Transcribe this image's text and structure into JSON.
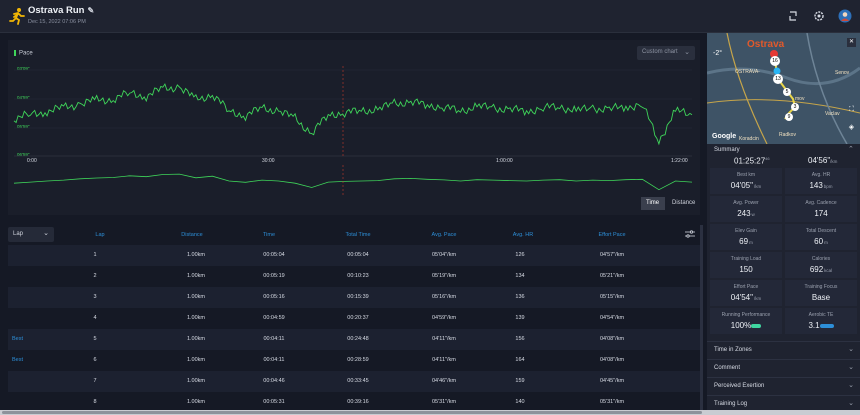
{
  "header": {
    "title": "Ostrava Run",
    "date": "Dec 15, 2022 07:06 PM"
  },
  "chart": {
    "legend": "Pace",
    "custom_chart_label": "Custom chart",
    "y_ticks": [
      "03'09\"",
      "04'59\"",
      "05'59\"",
      "06'59\""
    ],
    "x_ticks": [
      "0:00",
      "30:00",
      "1:00:00",
      "1:22:00"
    ],
    "toggle_time": "Time",
    "toggle_distance": "Distance",
    "line_color": "#3fd65a"
  },
  "chart_data": {
    "type": "line",
    "title": "",
    "legend": "Pace",
    "x_ticks": [
      "0:00",
      "30:00",
      "1:00:00",
      "1:22:00"
    ],
    "y_ticks": [
      "03'09\"",
      "04'59\"",
      "05'59\"",
      "06'59\""
    ],
    "series": [
      {
        "name": "Pace",
        "x_minutes": [
          0,
          2,
          4,
          6,
          8,
          10,
          12,
          14,
          16,
          18,
          20,
          22,
          24,
          26,
          28,
          30,
          32,
          34,
          36,
          38,
          40,
          42,
          44,
          46,
          48,
          50,
          52,
          54,
          56,
          58,
          60,
          62,
          64,
          66,
          68,
          70,
          72,
          74,
          76,
          78,
          80,
          82
        ],
        "pace_sec_per_km": [
          310,
          305,
          300,
          296,
          290,
          286,
          284,
          276,
          280,
          270,
          268,
          285,
          278,
          300,
          306,
          296,
          300,
          310,
          330,
          305,
          302,
          300,
          298,
          290,
          288,
          292,
          295,
          300,
          294,
          296,
          298,
          300,
          296,
          294,
          300,
          296,
          298,
          294,
          292,
          340,
          300,
          305
        ]
      }
    ]
  },
  "table": {
    "lap_select": "Lap",
    "headers": [
      "Lap",
      "Distance",
      "Time",
      "Total Time",
      "Avg. Pace",
      "Avg. HR",
      "Effort Pace"
    ],
    "rows": [
      {
        "tag": "",
        "lap": "1",
        "distance": "1.00km",
        "time": "00:05:04",
        "total": "00:05:04",
        "pace": "05'04\"/km",
        "hr": "126",
        "effort": "04'57\"/km"
      },
      {
        "tag": "",
        "lap": "2",
        "distance": "1.00km",
        "time": "00:05:19",
        "total": "00:10:23",
        "pace": "05'19\"/km",
        "hr": "134",
        "effort": "05'21\"/km"
      },
      {
        "tag": "",
        "lap": "3",
        "distance": "1.00km",
        "time": "00:05:16",
        "total": "00:15:39",
        "pace": "05'16\"/km",
        "hr": "136",
        "effort": "05'15\"/km"
      },
      {
        "tag": "",
        "lap": "4",
        "distance": "1.00km",
        "time": "00:04:59",
        "total": "00:20:37",
        "pace": "04'59\"/km",
        "hr": "139",
        "effort": "04'54\"/km"
      },
      {
        "tag": "Best",
        "lap": "5",
        "distance": "1.00km",
        "time": "00:04:11",
        "total": "00:24:48",
        "pace": "04'11\"/km",
        "hr": "156",
        "effort": "04'08\"/km"
      },
      {
        "tag": "Best",
        "lap": "6",
        "distance": "1.00km",
        "time": "00:04:11",
        "total": "00:28:59",
        "pace": "04'11\"/km",
        "hr": "164",
        "effort": "04'08\"/km"
      },
      {
        "tag": "",
        "lap": "7",
        "distance": "1.00km",
        "time": "00:04:46",
        "total": "00:33:45",
        "pace": "04'46\"/km",
        "hr": "159",
        "effort": "04'45\"/km"
      },
      {
        "tag": "",
        "lap": "8",
        "distance": "1.00km",
        "time": "00:05:31",
        "total": "00:39:16",
        "pace": "05'31\"/km",
        "hr": "140",
        "effort": "05'31\"/km"
      }
    ]
  },
  "map": {
    "city": "Ostrava",
    "temp": "-2°",
    "labels": [
      "OSTRAVA-",
      "Senov",
      "Vaclav",
      "Radkov",
      "Koradcin",
      "mov"
    ],
    "google": "Google",
    "markers": [
      "16",
      "13",
      "5",
      "3",
      "9"
    ]
  },
  "summary": {
    "title": "Summary",
    "top_left": "01:25:27",
    "top_left_unit": "46",
    "top_right": "04'56\"",
    "top_right_unit": "/km",
    "cards": [
      {
        "label": "Best km",
        "value": "04'05\"",
        "unit": "/km"
      },
      {
        "label": "Avg. HR",
        "value": "143",
        "unit": "bpm"
      },
      {
        "label": "Avg. Power",
        "value": "243",
        "unit": "w"
      },
      {
        "label": "Avg. Cadence",
        "value": "174",
        "unit": ""
      },
      {
        "label": "Elev Gain",
        "value": "69",
        "unit": "m"
      },
      {
        "label": "Total Descent",
        "value": "60",
        "unit": "m"
      },
      {
        "label": "Training Load",
        "value": "150",
        "unit": ""
      },
      {
        "label": "Calories",
        "value": "692",
        "unit": "kcal"
      },
      {
        "label": "Effort Pace",
        "value": "04'54\"",
        "unit": "/km"
      },
      {
        "label": "Training Focus",
        "value": "Base",
        "unit": ""
      },
      {
        "label": "Running Performance",
        "value": "100%",
        "unit": ""
      },
      {
        "label": "Aerobic TE",
        "value": "3.1",
        "unit": ""
      }
    ],
    "perf_badge_color": "#3fd6a0",
    "te_badge_color": "#2d8fd8"
  },
  "sections": [
    "Time in Zones",
    "Comment",
    "Perceived Exertion",
    "Training Log"
  ]
}
